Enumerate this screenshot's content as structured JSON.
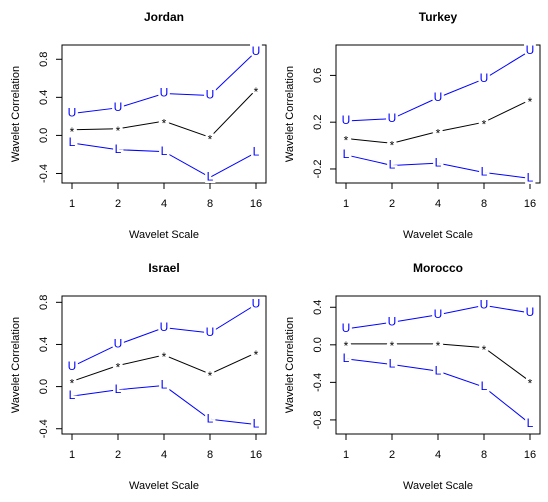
{
  "chart_data": [
    {
      "type": "line",
      "title": "Jordan",
      "xlabel": "Wavelet Scale",
      "ylabel": "Wavelet Correlation",
      "categories": [
        "1",
        "2",
        "4",
        "8",
        "16"
      ],
      "series": [
        {
          "name": "U",
          "color": "#0000ff",
          "values": [
            0.23,
            0.29,
            0.44,
            0.42,
            0.88
          ]
        },
        {
          "name": "*",
          "color": "#000000",
          "values": [
            0.06,
            0.07,
            0.15,
            -0.02,
            0.48
          ]
        },
        {
          "name": "L",
          "color": "#0000ff",
          "values": [
            -0.08,
            -0.15,
            -0.17,
            -0.44,
            -0.18
          ]
        }
      ],
      "ylim": [
        -0.5,
        0.95
      ],
      "yticks": [
        -0.4,
        {
          "value": 0,
          "label": "0.0"
        },
        0.4,
        0.8
      ]
    },
    {
      "type": "line",
      "title": "Turkey",
      "xlabel": "Wavelet Scale",
      "ylabel": "Wavelet Correlation",
      "categories": [
        "1",
        "2",
        "4",
        "8",
        "16"
      ],
      "series": [
        {
          "name": "U",
          "color": "#0000ff",
          "values": [
            0.21,
            0.23,
            0.41,
            0.57,
            0.81
          ]
        },
        {
          "name": "*",
          "color": "#000000",
          "values": [
            0.06,
            0.02,
            0.12,
            0.2,
            0.39
          ]
        },
        {
          "name": "L",
          "color": "#0000ff",
          "values": [
            -0.08,
            -0.17,
            -0.15,
            -0.23,
            -0.28
          ]
        }
      ],
      "ylim": [
        -0.32,
        0.86
      ],
      "yticks": [
        -0.2,
        0.2,
        0.6
      ]
    },
    {
      "type": "line",
      "title": "Israel",
      "xlabel": "Wavelet Scale",
      "ylabel": "Wavelet Correlation",
      "categories": [
        "1",
        "2",
        "4",
        "8",
        "16"
      ],
      "series": [
        {
          "name": "U",
          "color": "#0000ff",
          "values": [
            0.19,
            0.4,
            0.56,
            0.51,
            0.78
          ]
        },
        {
          "name": "*",
          "color": "#000000",
          "values": [
            0.05,
            0.2,
            0.3,
            0.12,
            0.32
          ]
        },
        {
          "name": "L",
          "color": "#0000ff",
          "values": [
            -0.09,
            -0.03,
            0.01,
            -0.31,
            -0.36
          ]
        }
      ],
      "ylim": [
        -0.45,
        0.86
      ],
      "yticks": [
        -0.4,
        {
          "value": 0,
          "label": "0.0"
        },
        0.4,
        0.8
      ]
    },
    {
      "type": "line",
      "title": "Morocco",
      "xlabel": "Wavelet Scale",
      "ylabel": "Wavelet Correlation",
      "categories": [
        "1",
        "2",
        "4",
        "8",
        "16"
      ],
      "series": [
        {
          "name": "U",
          "color": "#0000ff",
          "values": [
            0.17,
            0.24,
            0.32,
            0.42,
            0.34
          ]
        },
        {
          "name": "*",
          "color": "#000000",
          "values": [
            0.01,
            0.01,
            0.01,
            -0.03,
            -0.39
          ]
        },
        {
          "name": "L",
          "color": "#0000ff",
          "values": [
            -0.15,
            -0.21,
            -0.28,
            -0.45,
            -0.84
          ]
        }
      ],
      "ylim": [
        -0.95,
        0.52
      ],
      "yticks": [
        -0.8,
        -0.4,
        {
          "value": 0,
          "label": "0.0"
        },
        0.4
      ]
    }
  ]
}
